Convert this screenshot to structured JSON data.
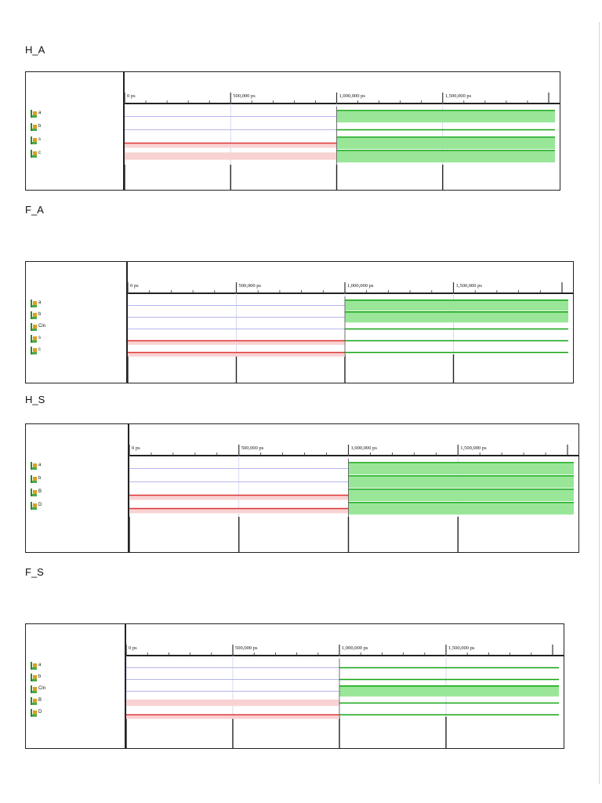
{
  "timeline": {
    "tick_labels": [
      "0 ps",
      "500,000 ps",
      "1,000,000 ps",
      "1,500,000 ps"
    ],
    "change_time": "1,000,000 ps"
  },
  "colors": {
    "low": "#dd3333",
    "low_fill": "#f8d2d2",
    "high": "#11a411",
    "high_fill": "#99e699",
    "undefined": "#b6b6ee"
  },
  "panels": [
    {
      "title": "H_A",
      "signals": [
        {
          "name": "a",
          "before": "undefined",
          "after": "high_fill"
        },
        {
          "name": "b",
          "before": "undefined",
          "after": "high"
        },
        {
          "name": "s",
          "before": "low",
          "after": "high_fill"
        },
        {
          "name": "c",
          "before": "low_fill",
          "after": "high_fill"
        }
      ]
    },
    {
      "title": "F_A",
      "signals": [
        {
          "name": "a",
          "before": "undefined",
          "after": "high_fill"
        },
        {
          "name": "b",
          "before": "undefined",
          "after": "high_fill"
        },
        {
          "name": "Cin",
          "before": "undefined",
          "after": "high"
        },
        {
          "name": "s",
          "before": "low",
          "after": "high"
        },
        {
          "name": "c",
          "before": "low",
          "after": "high"
        }
      ]
    },
    {
      "title": "H_S",
      "signals": [
        {
          "name": "a",
          "before": "undefined",
          "after": "high_fill"
        },
        {
          "name": "b",
          "before": "undefined",
          "after": "high_fill"
        },
        {
          "name": "B",
          "before": "low",
          "after": "high_fill"
        },
        {
          "name": "D",
          "before": "low",
          "after": "high_fill"
        }
      ]
    },
    {
      "title": "F_S",
      "signals": [
        {
          "name": "a",
          "before": "undefined",
          "after": "high"
        },
        {
          "name": "b",
          "before": "undefined",
          "after": "high"
        },
        {
          "name": "Cin",
          "before": "undefined",
          "after": "high_fill"
        },
        {
          "name": "B",
          "before": "low_fill",
          "after": "high"
        },
        {
          "name": "D",
          "before": "low",
          "after": "high"
        }
      ]
    }
  ]
}
